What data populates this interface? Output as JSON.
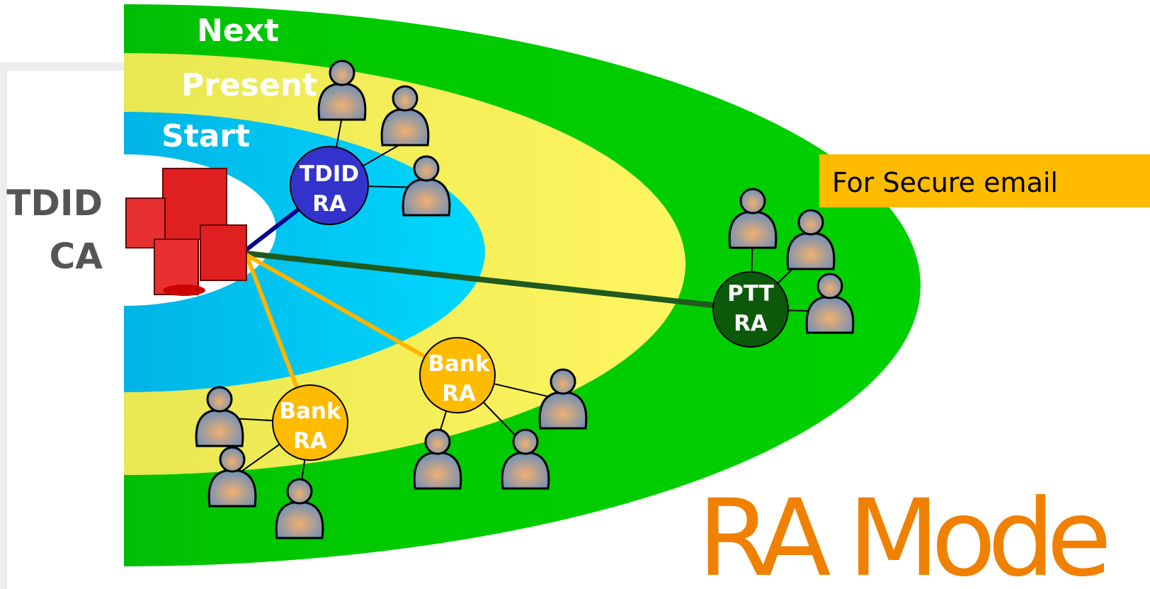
{
  "rings": {
    "next": "Next",
    "present": "Present",
    "start": "Start"
  },
  "ca": {
    "label": [
      "TDID",
      "CA"
    ]
  },
  "nodes": [
    {
      "label": [
        "TDID",
        "RA"
      ]
    },
    {
      "label": [
        "Bank",
        "RA"
      ]
    },
    {
      "label": [
        "Bank",
        "RA"
      ]
    },
    {
      "label": [
        "PTT",
        "RA"
      ]
    }
  ],
  "callout": "For Secure email",
  "title": "RA Mode"
}
